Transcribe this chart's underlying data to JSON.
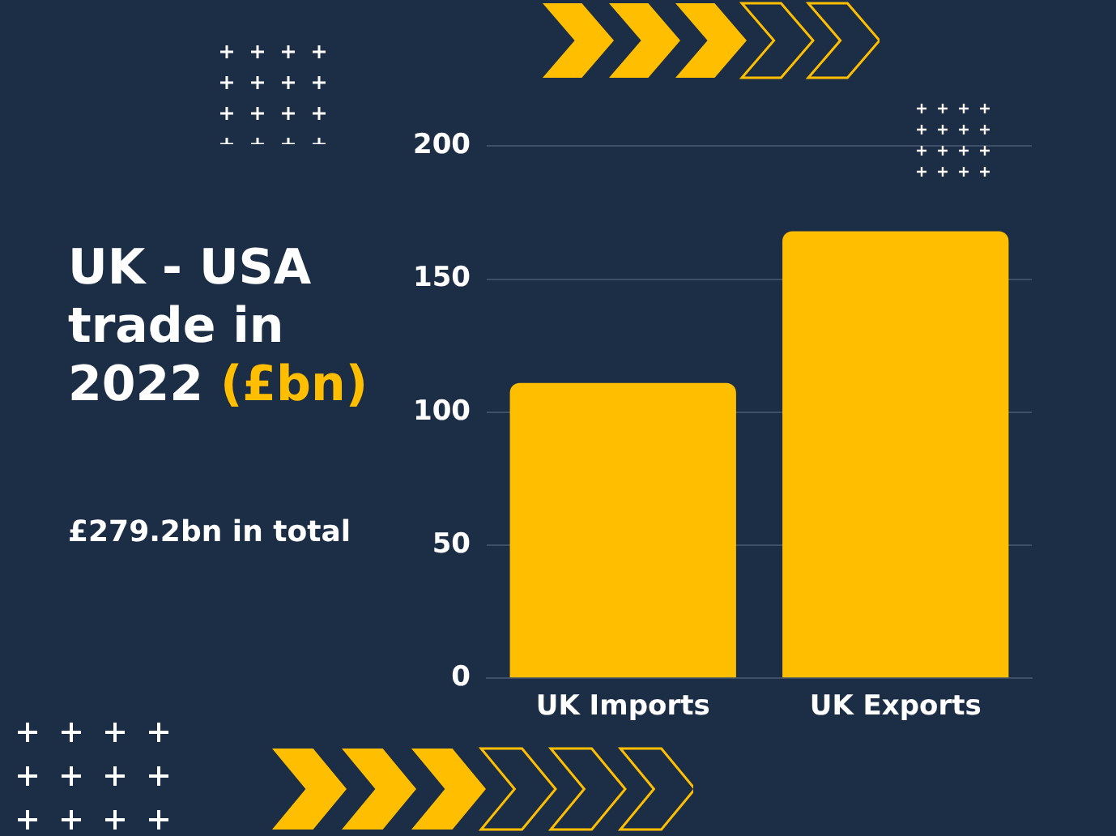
{
  "chart_data": {
    "type": "bar",
    "title": "UK - USA trade in 2022",
    "ylabel": "(£bn)",
    "subtitle": "£279.2bn in total",
    "categories": [
      "UK Imports",
      "UK Exports"
    ],
    "values": [
      111,
      168
    ],
    "color": "#ffbf00",
    "ylim": [
      0,
      200
    ],
    "yticks": [
      0,
      50,
      100,
      150,
      200
    ],
    "grid": "y"
  }
}
